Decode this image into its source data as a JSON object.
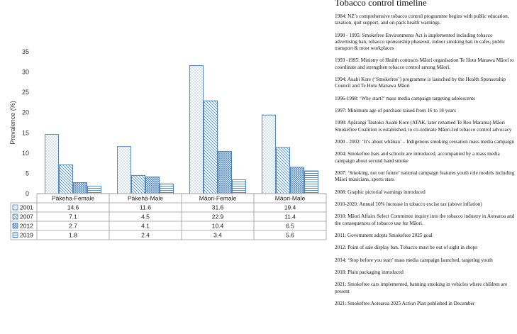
{
  "chart_data": {
    "type": "bar",
    "ylabel": "Prevalence (%)",
    "ylim": [
      0,
      35
    ],
    "yticks": [
      0,
      5,
      10,
      15,
      20,
      25,
      30,
      35
    ],
    "grid": false,
    "legend": "data-table rows",
    "categories": [
      "Pākeha-Female",
      "Pākehā-Male",
      "Māori-Female",
      "Māori-Male"
    ],
    "series": [
      {
        "name": "2001",
        "values": [
          14.6,
          11.6,
          31.6,
          19.4
        ],
        "pattern": "dots"
      },
      {
        "name": "2007",
        "values": [
          7.1,
          4.5,
          22.9,
          11.4
        ],
        "pattern": "diagonal"
      },
      {
        "name": "2012",
        "values": [
          2.7,
          4.1,
          10.4,
          6.5
        ],
        "pattern": "dense-dots"
      },
      {
        "name": "2019",
        "values": [
          1.8,
          2.4,
          3.4,
          5.6
        ],
        "pattern": "horizontal"
      }
    ],
    "table_values": [
      [
        "14.6",
        "11.6",
        "31.6",
        "19.4"
      ],
      [
        "7.1",
        "4.5",
        "22.9",
        "11.4"
      ],
      [
        "2.7",
        "4.1",
        "10.4",
        "6.5"
      ],
      [
        "1.8",
        "2.4",
        "3.4",
        "5.6"
      ]
    ],
    "colors": {
      "bar_stroke": "#2e6db4",
      "pattern": "#2e6db4",
      "axis": "#999999"
    }
  },
  "timeline": {
    "title": "Tobacco control timeline",
    "events": [
      "1984: NZ’s comprehensive tobacco control programme begins with public education, taxation, quit support, and on-pack health warnings.",
      "1990 - 1995: Smokefree Environments Act is implemented including tobacco advertising ban, tobacco sponsorship phaseout, indoor smoking ban in cafes, public transport & most workplaces",
      "1993 -1995: Ministry of Health contracts Māori organisation Te Hotu Manawa Māori to coordinate and strengthen tobacco control among Māori.",
      "1994: Auahi Kore (‘Smokefree’) programme is launched by the Health Sponsorship Council and Te Hotu Manawa Māori",
      "1996-1998: ‘Why start?’ mass media campaign targeting adolescents",
      "1997: Minimum age of purchase raised from 16 to 18 years",
      "1998: Apārangi Tautoko Auahi Kore (ATAK, later renamed Te Reo Marama) Māori Smokefree Coalition is established, to co-ordinate Māori-led tobacco control advocacy",
      "2000 - 2002: ‘It’s about whānau’ – Indigenous smoking cessation mass media campaign",
      "2004: Smokefree bars and schools are introduced, accompanied by a mass media campaign about second hand smoke",
      "2007: ‘Smoking, not our future’ national campaign features youth role models including Māori musicians, sports stars",
      "2008: Graphic pictorial warnings introduced",
      "2010-2020: Annual 10% increase in tobacco excise tax (above inflation)",
      "2010: Māori Affairs Select Committee inquiry into the tobacco industry in Aotearoa and the consequences of tobacco use for Māori.",
      "2011: Government adopts Smokefree 2025 goal",
      "2012: Point of sale display ban. Tobacco must be out of sight in shops",
      "2014: ‘Stop before you start’ mass media campaign launched, targeting youth",
      "2018: Plain packaging introduced",
      "2021: Smokefree cars implemented, banning smoking in vehicles where children are present",
      "2021: Smokefree Aotearoa 2025 Action Plan published in December"
    ]
  }
}
